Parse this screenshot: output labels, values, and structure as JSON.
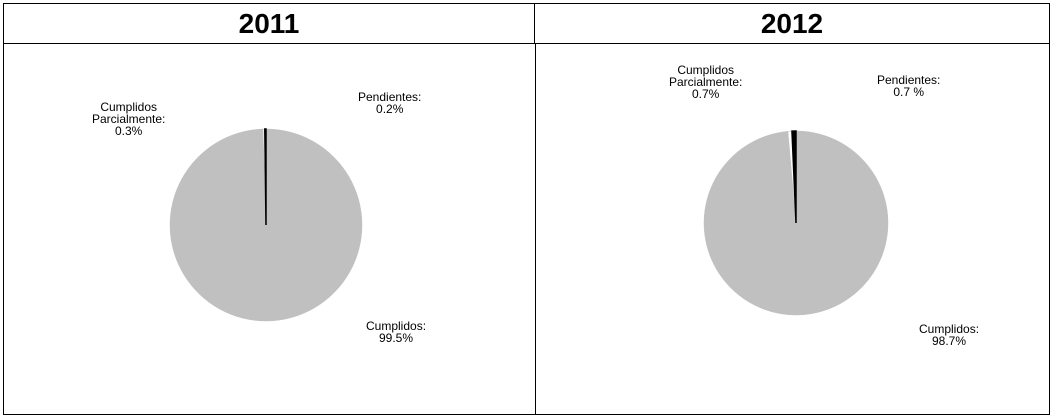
{
  "chart_data": [
    {
      "type": "pie",
      "title": "2011",
      "slices": [
        {
          "label_lines": [
            "Cumplidos:",
            "99.5%"
          ],
          "value": 99.5,
          "color": "#c0c0c0"
        },
        {
          "label_lines": [
            "Cumplidos",
            "Parcialmente:",
            "0.3%"
          ],
          "value": 0.3,
          "color": "#ffffff"
        },
        {
          "label_lines": [
            "Pendientes:",
            "0.2%"
          ],
          "value": 0.2,
          "color": "#000000"
        }
      ]
    },
    {
      "type": "pie",
      "title": "2012",
      "slices": [
        {
          "label_lines": [
            "Cumplidos:",
            "98.7%"
          ],
          "value": 98.7,
          "color": "#c0c0c0"
        },
        {
          "label_lines": [
            "Cumplidos",
            "Parcialmente:",
            "0.7%"
          ],
          "value": 0.7,
          "color": "#ffffff"
        },
        {
          "label_lines": [
            "Pendientes:",
            "0.7 %"
          ],
          "value": 0.7,
          "color": "#000000"
        }
      ]
    }
  ]
}
